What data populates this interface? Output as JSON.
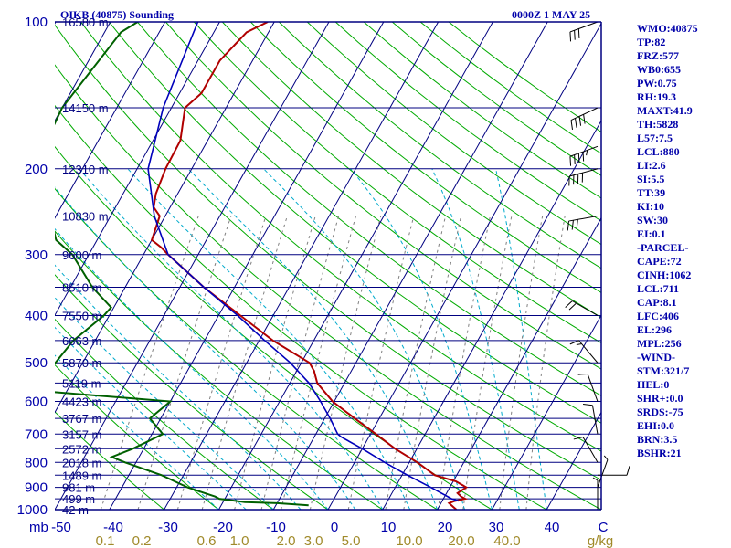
{
  "header": {
    "station": "OIKB (40875) Sounding",
    "time": "0000Z  1 MAY 25"
  },
  "side_panel": [
    "WMO:40875",
    "TP:82",
    "FRZ:577",
    "WB0:655",
    "PW:0.75",
    "RH:19.3",
    "MAXT:41.9",
    "TH:5828",
    "L57:7.5",
    "LCL:880",
    "LI:2.6",
    "SI:5.5",
    "TT:39",
    "KI:10",
    "SW:30",
    "EI:0.1",
    "-PARCEL-",
    "CAPE:72",
    "CINH:1062",
    "LCL:711",
    "CAP:8.1",
    "LFC:406",
    "EL:296",
    "MPL:256",
    "-WIND-",
    "STM:321/7",
    "HEL:0",
    "SHR+:0.0",
    "SRDS:-75",
    "EHI:0.0",
    "BRN:3.5",
    "BSHR:21"
  ],
  "colors": {
    "frame": "#000080",
    "isotherm": "#000080",
    "dry_adiabat": "#00aa00",
    "moist_adiabat": "#00aacc",
    "mixing_ratio": "#808080",
    "temperature": "#b00000",
    "dewpoint": "#006000",
    "parcel": "#0000bb",
    "labels": "#0000aa",
    "mixing_labels": "#a08a2a"
  },
  "chart_data": {
    "type": "line",
    "title": "OIKB (40875) Sounding",
    "x_axis_unit": "C",
    "y_axis_unit": "mb",
    "xlim": [
      -50,
      50
    ],
    "ylim": [
      1000,
      100
    ],
    "y_scale": "log",
    "pressure_ticks": [
      100,
      200,
      300,
      400,
      500,
      600,
      700,
      800,
      900,
      1000
    ],
    "temperature_ticks": [
      -50,
      -40,
      -30,
      -20,
      -10,
      0,
      10,
      20,
      30,
      40,
      "C"
    ],
    "mixing_ratio_labels": [
      "0.1",
      "0.2",
      "0.6",
      "1.0",
      "2.0",
      "3.0",
      "5.0",
      "10.0",
      "20.0",
      "40.0",
      "g/kg"
    ],
    "height_levels": [
      {
        "p": 100,
        "label": "16580 m"
      },
      {
        "p": 150,
        "label": "14150 m"
      },
      {
        "p": 200,
        "label": "12310 m"
      },
      {
        "p": 250,
        "label": "10830 m"
      },
      {
        "p": 300,
        "label": "9600 m"
      },
      {
        "p": 350,
        "label": "8510 m"
      },
      {
        "p": 400,
        "label": "7550 m"
      },
      {
        "p": 450,
        "label": "6663 m"
      },
      {
        "p": 500,
        "label": "5870 m"
      },
      {
        "p": 550,
        "label": "5119 m"
      },
      {
        "p": 600,
        "label": "4423 m"
      },
      {
        "p": 650,
        "label": "3767 m"
      },
      {
        "p": 700,
        "label": "3157 m"
      },
      {
        "p": 750,
        "label": "2572 m"
      },
      {
        "p": 800,
        "label": "2018 m"
      },
      {
        "p": 850,
        "label": "1489 m"
      },
      {
        "p": 900,
        "label": "981 m"
      },
      {
        "p": 950,
        "label": "499 m"
      },
      {
        "p": 1000,
        "label": "42 m"
      }
    ],
    "series": [
      {
        "key": "temperature",
        "points": [
          [
            100,
            -61.2
          ],
          [
            105,
            -64
          ],
          [
            120,
            -66
          ],
          [
            140,
            -66
          ],
          [
            150,
            -67.5
          ],
          [
            175,
            -65
          ],
          [
            200,
            -64.8
          ],
          [
            225,
            -64
          ],
          [
            240,
            -63
          ],
          [
            250,
            -61
          ],
          [
            280,
            -60
          ],
          [
            290,
            -57.5
          ],
          [
            300,
            -55.5
          ],
          [
            350,
            -45.6
          ],
          [
            400,
            -36
          ],
          [
            450,
            -27.5
          ],
          [
            500,
            -18.5
          ],
          [
            520,
            -16.8
          ],
          [
            550,
            -15
          ],
          [
            600,
            -10.3
          ],
          [
            650,
            -4.5
          ],
          [
            700,
            1
          ],
          [
            750,
            6
          ],
          [
            800,
            11.5
          ],
          [
            850,
            16
          ],
          [
            875,
            20.5
          ],
          [
            900,
            23
          ],
          [
            925,
            22
          ],
          [
            940,
            23
          ],
          [
            950,
            24
          ],
          [
            960,
            22.3
          ],
          [
            970,
            21.5
          ],
          [
            985,
            22.5
          ],
          [
            1000,
            23.5
          ]
        ]
      },
      {
        "key": "dewpoint",
        "points": [
          [
            100,
            -85
          ],
          [
            105,
            -87
          ],
          [
            150,
            -90
          ],
          [
            200,
            -89
          ],
          [
            250,
            -81
          ],
          [
            280,
            -77.5
          ],
          [
            300,
            -73
          ],
          [
            350,
            -66
          ],
          [
            385,
            -60.5
          ],
          [
            400,
            -61
          ],
          [
            450,
            -64
          ],
          [
            500,
            -65
          ],
          [
            550,
            -84
          ],
          [
            600,
            -40
          ],
          [
            650,
            -42
          ],
          [
            700,
            -38
          ],
          [
            750,
            -42
          ],
          [
            780,
            -45
          ],
          [
            800,
            -42
          ],
          [
            850,
            -34
          ],
          [
            900,
            -28
          ],
          [
            920,
            -25
          ],
          [
            940,
            -22
          ],
          [
            950,
            -21
          ],
          [
            965,
            -16
          ],
          [
            970,
            -10
          ],
          [
            980,
            -4
          ]
        ]
      },
      {
        "key": "parcel",
        "points": [
          [
            100,
            -74
          ],
          [
            150,
            -71.5
          ],
          [
            200,
            -68
          ],
          [
            250,
            -62
          ],
          [
            300,
            -55.5
          ],
          [
            350,
            -45.6
          ],
          [
            400,
            -36.5
          ],
          [
            450,
            -29
          ],
          [
            500,
            -22
          ],
          [
            550,
            -16.5
          ],
          [
            600,
            -12.5
          ],
          [
            650,
            -9
          ],
          [
            700,
            -6
          ],
          [
            710,
            -5
          ],
          [
            750,
            0
          ],
          [
            800,
            5.5
          ],
          [
            850,
            11
          ],
          [
            900,
            16.5
          ],
          [
            950,
            21.5
          ],
          [
            960,
            23
          ]
        ]
      }
    ],
    "winds": [
      {
        "p": 100,
        "dir": 250,
        "kt": 30
      },
      {
        "p": 150,
        "dir": 245,
        "kt": 40
      },
      {
        "p": 180,
        "dir": 250,
        "kt": 45
      },
      {
        "p": 200,
        "dir": 255,
        "kt": 40
      },
      {
        "p": 250,
        "dir": 260,
        "kt": 30
      },
      {
        "p": 400,
        "dir": 300,
        "kt": 20
      },
      {
        "p": 500,
        "dir": 320,
        "kt": 15
      },
      {
        "p": 600,
        "dir": 340,
        "kt": 10
      },
      {
        "p": 700,
        "dir": 350,
        "kt": 10
      },
      {
        "p": 800,
        "dir": 330,
        "kt": 10
      },
      {
        "p": 850,
        "dir": 90,
        "kt": 10
      },
      {
        "p": 900,
        "dir": 20,
        "kt": 5
      },
      {
        "p": 1000,
        "dir": 0,
        "kt": 5
      }
    ]
  }
}
